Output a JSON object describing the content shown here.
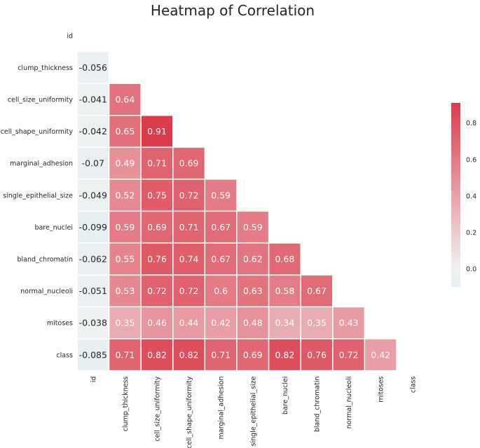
{
  "chart_data": {
    "type": "heatmap",
    "title": "Heatmap of Correlation",
    "mask": "upper-triangle",
    "row_labels": [
      "id",
      "clump_thickness",
      "cell_size_uniformity",
      "cell_shape_uniformity",
      "marginal_adhesion",
      "single_epithelial_size",
      "bare_nuclei",
      "bland_chromatin",
      "normal_nucleoli",
      "mitoses",
      "class"
    ],
    "col_labels": [
      "id",
      "clump_thickness",
      "cell_size_uniformity",
      "cell_shape_uniformity",
      "marginal_adhesion",
      "single_epithelial_size",
      "bare_nuclei",
      "bland_chromatin",
      "normal_nucleoli",
      "mitoses",
      "class"
    ],
    "values": [
      [],
      [
        -0.056
      ],
      [
        -0.041,
        0.64
      ],
      [
        -0.042,
        0.65,
        0.91
      ],
      [
        -0.07,
        0.49,
        0.71,
        0.69
      ],
      [
        -0.049,
        0.52,
        0.75,
        0.72,
        0.59
      ],
      [
        -0.099,
        0.59,
        0.69,
        0.71,
        0.67,
        0.59
      ],
      [
        -0.062,
        0.55,
        0.76,
        0.74,
        0.67,
        0.62,
        0.68
      ],
      [
        -0.051,
        0.53,
        0.72,
        0.72,
        0.6,
        0.63,
        0.58,
        0.67
      ],
      [
        -0.038,
        0.35,
        0.46,
        0.44,
        0.42,
        0.48,
        0.34,
        0.35,
        0.43
      ],
      [
        -0.085,
        0.71,
        0.82,
        0.82,
        0.71,
        0.69,
        0.82,
        0.76,
        0.72,
        0.42
      ]
    ],
    "colorbar": {
      "min": -0.099,
      "max": 0.91,
      "ticks": [
        0.0,
        0.2,
        0.4,
        0.6,
        0.8
      ],
      "tick_labels": [
        "0.0",
        "0.2",
        "0.4",
        "0.6",
        "0.8"
      ],
      "colors": {
        "neg": "#e6eff2",
        "mid": "#f2f2f2",
        "pos": "#db3c4b"
      }
    },
    "grid": false
  }
}
